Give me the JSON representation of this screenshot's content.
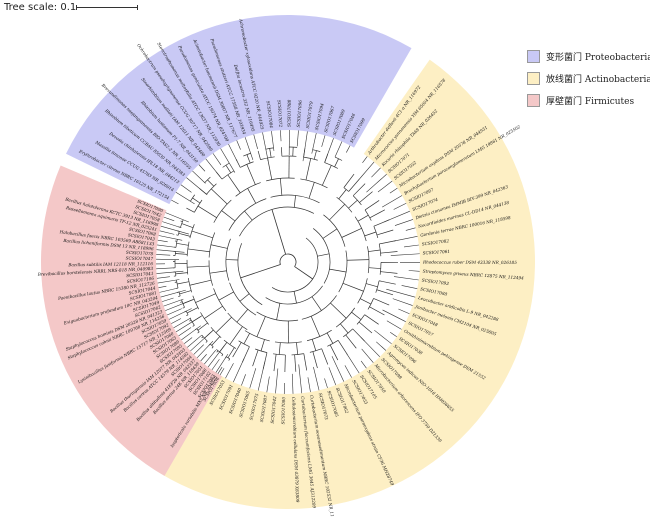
{
  "scale": {
    "label": "Tree scale: 0.1"
  },
  "legend": [
    {
      "label": "变形菌门 Proteobacteria",
      "color": "#c9c9f5"
    },
    {
      "label": "放线菌门 Actinobacteria",
      "color": "#fdefc4"
    },
    {
      "label": "厚壁菌门 Firmicutes",
      "color": "#f4c8c8"
    }
  ],
  "groups": [
    {
      "name": "proteobacteria",
      "color": "#c9c9f5",
      "leaves": [
        "Erythrobacter citreus NBRC 16125 NR_172154",
        "Massilia timonae CCUG 45783 NR_026014",
        "Devosia chinhatensis IPL18 NR_044213",
        "Rhizobium tibeticum CCBAU 85039 NR_044383",
        "Brevundimonas naejangsanensis BIO-TAS2-2 NR_116355",
        "Rhizobium lusitanum P1-7 NR_043150",
        "Sinorhizobium meliloti IAM 12611 NR_043400",
        "Ochrobactrum pseudogrignonense CCUG 30717 NR_042589",
        "Stenotrophomonas maltophilia ATCC 13637 NR_112030",
        "Pseudomonas geniculata ATCC 19374 NR_024709",
        "Acinetobacter baumannii DSM 30007 NR_117677",
        "Pseudomonas stutzeri ATCC 17588 NR_103934",
        "Delftia lacustris 332 NR_116495",
        "Achromobacter xylosoxidans ATCC 9220 NR_044925",
        "SCSIO17084",
        "SCSIO17072",
        "SCSIO17088",
        "SCSIO17096",
        "SCSIO17079",
        "SCSIO17094",
        "SCSIO17067",
        "SCSIO17089",
        "SCSIO17046",
        "SCSIO17099"
      ]
    },
    {
      "name": "actinobacteria",
      "color": "#fdefc4",
      "leaves": [
        "Arthrobacter defluvii 4C1-a NR_116972",
        "Micrococcus yunnanensis YIM 65004 NR_116578",
        "Kocuria rhizophila TA68 NR_026452",
        "SCSIO17071",
        "SCSIO17052",
        "Microbacterium oxydans DSM 20578 NR_044931",
        "Brachybacterium paraconglomeratum LMG 19861 NR_025502",
        "SCSIO17097",
        "SCSIO17074",
        "Dietzia cinnamea IMMIB RIV-399 NR_042363",
        "Nocardioides marinus CL-DD14 NR_044138",
        "Gordonia terrae NBRC 100016 NR_118598",
        "SCSIO17082",
        "SCSIO17061",
        "Rhodococcus ruber DSM 43338 NR_026185",
        "Streptomyces griseus NBRC 12875 NR_112494",
        "SCSIO17093",
        "SCSIO17088",
        "Leucobacter aridicollis L-9 NR_042288",
        "Janibacter melonis CM2104 NR_025805",
        "SCSIO17048",
        "SCSIO17057",
        "Ornithinimicrobium pekingense DSM 21552",
        "SCSIO17038",
        "SCSIO17096",
        "Agromyces indicus NIO-1018 HM036655",
        "SCSIO17098",
        "Microbacterium arborescens IFO 3750 D21339",
        "SCSIO17050",
        "SCSIO17105",
        "SCSIO17055",
        "Microbacterium paraoxydans strain CF36 MH28749",
        "SCSIO17062",
        "SCSIO17085",
        "SCSIO17073",
        "Curtobacterium oceanosedimentum NBRC 102532 NR_114232",
        "Curtobacterium flaccumfaciens LMG 3645 AJ312209",
        "Cellulosimicrobium cellulans DSM 43879 X83809",
        "SCSIO17080",
        "SCSIO17042",
        "SCSIO17087",
        "SCSIO17075",
        "SCSIO17065",
        "SCSIO17040",
        "SCSIO17091",
        "SCSIO17053",
        "Isoptericola variabilis MX5 NR_104926"
      ]
    },
    {
      "name": "firmicutes",
      "color": "#f4c8c8",
      "leaves": [
        "SCSIO17036",
        "SCSIO17083",
        "SCSIO17102",
        "SCSIO17086",
        "SCSIO17051",
        "Bacillus aerius 24K NR_118439",
        "Bacillus altitudinis 41KF2b NR_042337",
        "SCSIO17064",
        "Bacillus cereus ATCC 14579 NR_114582",
        "Bacillus thuringiensis IAM 12077 NR_043403",
        "SCSIO17095",
        "SCSIO17089",
        "SCSIO17063",
        "SCSIO17060",
        "Lysinibacillus fusiformis NBRC 15717 NR_112569",
        "SCSIO17092",
        "SCSIO17059",
        "Staphylococcus cohnii NBRC 109766 NR_114236",
        "Staphylococcus hominis DSM 20328 NR_041323",
        "SCSIO17062",
        "SCSIO17049",
        "Exiguobacterium profundum 10C NR_043204",
        "SCSIO17081",
        "SCSIO17044",
        "Paenibacillus lautus NBRC 15380 NR_112726",
        "SCSIO17106",
        "SCSIO17041",
        "Brevibacillus borstelensis NRRL NRS-818 NR_040983",
        "Bacillus subtilis IAM 12118 NR_112116",
        "SCSIO17047",
        "SCSIO17078",
        "Bacillus licheniformis DSM 13 NR_118996",
        "Halobacillus faecis NBRC 103569 AB681133",
        "SCSIO17043",
        "SCSIO17068",
        "Rossellomorea aquimaris TF-12 NR_025241",
        "Bacillus halotolerans KCTC 3913 NR_118998",
        "SCSIO17058",
        "SCSIO17042",
        "SCSIO17090"
      ]
    }
  ]
}
